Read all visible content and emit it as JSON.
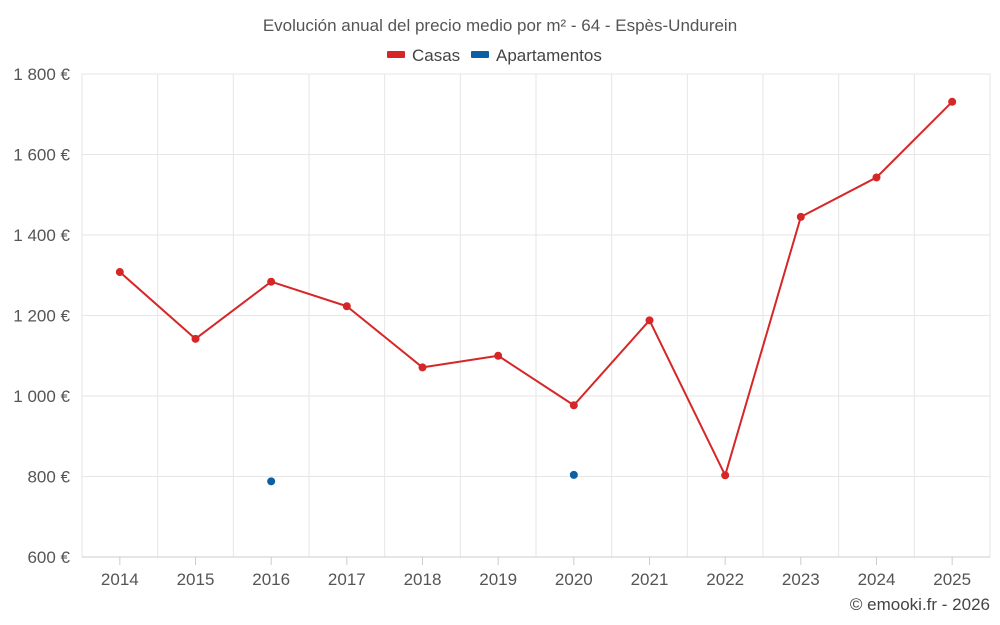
{
  "chart_data": {
    "type": "line",
    "title": "Evolución anual del precio medio por m² - 64 - Espès-Undurein",
    "categories": [
      "2014",
      "2015",
      "2016",
      "2017",
      "2018",
      "2019",
      "2020",
      "2021",
      "2022",
      "2023",
      "2024",
      "2025"
    ],
    "ylim": [
      600,
      1800
    ],
    "yticks": [
      600,
      800,
      1000,
      1200,
      1400,
      1600,
      1800
    ],
    "ytick_labels": [
      "600 €",
      "800 €",
      "1 000 €",
      "1 200 €",
      "1 400 €",
      "1 600 €",
      "1 800 €"
    ],
    "legend_position": "top-center",
    "grid": true,
    "series": [
      {
        "name": "Casas",
        "color": "#d62728",
        "values": [
          1308,
          1142,
          1284,
          1223,
          1071,
          1100,
          977,
          1188,
          803,
          1445,
          1543,
          1731
        ],
        "line": true
      },
      {
        "name": "Apartamentos",
        "color": "#0b5fa5",
        "values": [
          null,
          null,
          788,
          null,
          null,
          null,
          804,
          null,
          null,
          null,
          null,
          null
        ],
        "line": false
      }
    ]
  },
  "credit": "© emooki.fr - 2026"
}
